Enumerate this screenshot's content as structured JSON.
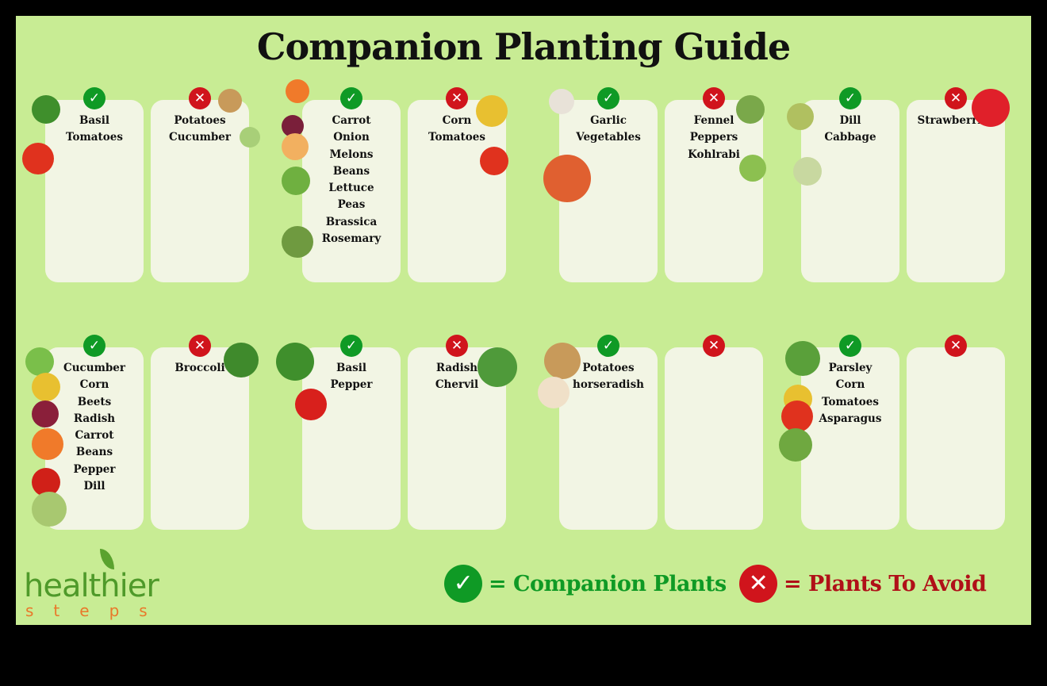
{
  "title": "Companion Planting Guide",
  "colors": {
    "background": "#c8ec94",
    "card": "#f2f5e4",
    "companion": "#0f9a25",
    "avoid": "#d0141c"
  },
  "rows": [
    [
      {
        "type": "companion",
        "items": [
          "Basil",
          "Tomatoes"
        ]
      },
      {
        "type": "avoid",
        "items": [
          "Potatoes",
          "Cucumber"
        ]
      },
      {
        "type": "companion",
        "items": [
          "Carrot",
          "Onion",
          "Melons",
          "Beans",
          "Lettuce",
          "Peas",
          "Brassica",
          "Rosemary"
        ]
      },
      {
        "type": "avoid",
        "items": [
          "Corn",
          "Tomatoes"
        ]
      },
      {
        "type": "companion",
        "items": [
          "Garlic",
          "Vegetables"
        ]
      },
      {
        "type": "avoid",
        "items": [
          "Fennel",
          "Peppers",
          "Kohlrabi"
        ]
      },
      {
        "type": "companion",
        "items": [
          "Dill",
          "Cabbage"
        ]
      },
      {
        "type": "avoid",
        "items": [
          "Strawberries"
        ]
      }
    ],
    [
      {
        "type": "companion",
        "items": [
          "Cucumber",
          "Corn",
          "Beets",
          "Radish",
          "Carrot",
          "Beans",
          "Pepper",
          "Dill"
        ]
      },
      {
        "type": "avoid",
        "items": [
          "Broccoli"
        ]
      },
      {
        "type": "companion",
        "items": [
          "Basil",
          "Pepper"
        ]
      },
      {
        "type": "avoid",
        "items": [
          "Radish",
          "Chervil"
        ]
      },
      {
        "type": "companion",
        "items": [
          "Potatoes",
          "horseradish"
        ]
      },
      {
        "type": "avoid",
        "items": []
      },
      {
        "type": "companion",
        "items": [
          "Parsley",
          "Corn",
          "Tomatoes",
          "Asparagus"
        ]
      },
      {
        "type": "avoid",
        "items": []
      }
    ]
  ],
  "icons": {
    "companion": "check-icon",
    "avoid": "x-icon"
  },
  "logo": {
    "line1": "healthier",
    "line2": "steps"
  },
  "legend": {
    "companion_label": "= Companion Plants",
    "avoid_label": "= Plants To Avoid"
  }
}
